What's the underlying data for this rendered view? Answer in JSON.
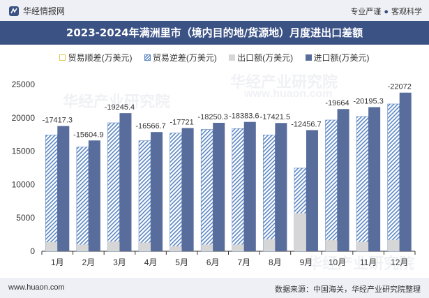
{
  "header": {
    "brand": "华经情报网",
    "tags": [
      "专业严谨",
      "客观科学"
    ]
  },
  "title": "2023-2024年满洲里市（境内目的地/货源地）月度进出口差额",
  "legend": [
    {
      "key": "surplus",
      "label": "贸易顺差(万美元)"
    },
    {
      "key": "deficit",
      "label": "贸易逆差(万美元)"
    },
    {
      "key": "export",
      "label": "出口额(万美元)"
    },
    {
      "key": "import",
      "label": "进口额(万美元)"
    }
  ],
  "watermarks": [
    "华经产业研究院",
    "www.huaon.com"
  ],
  "footer": {
    "url": "www.huaon.com",
    "source": "数据来源：中国海关，华经产业研究院整理"
  },
  "colors": {
    "header_bg": "#3b5285",
    "import": "#586d9c",
    "export": "#d6d6d6",
    "deficit": "#5a86c4",
    "surplus": "#e3c84a"
  },
  "chart_data": {
    "type": "bar",
    "categories": [
      "1月",
      "2月",
      "3月",
      "4月",
      "5月",
      "6月",
      "7月",
      "8月",
      "9月",
      "10月",
      "11月",
      "12月"
    ],
    "series": [
      {
        "name": "贸易顺差(万美元)",
        "values": [
          null,
          null,
          null,
          null,
          null,
          null,
          null,
          null,
          null,
          null,
          null,
          null
        ]
      },
      {
        "name": "贸易逆差(万美元)",
        "values": [
          -17417.3,
          -15604.9,
          -19245.4,
          -16566.7,
          -17721,
          -18250.3,
          -18383.6,
          -17421.5,
          -12456.7,
          -19664,
          -20195.3,
          -22072
        ]
      },
      {
        "name": "出口额(万美元)",
        "values": [
          1350,
          1000,
          1450,
          1300,
          750,
          1000,
          1000,
          1800,
          5700,
          1650,
          1400,
          1700
        ]
      },
      {
        "name": "进口额(万美元)",
        "values": [
          18767.3,
          16604.9,
          20695.4,
          17866.7,
          18471,
          19250.3,
          19383.6,
          19221.5,
          18156.7,
          21314,
          21595.3,
          23772
        ]
      }
    ],
    "data_labels": [
      "-17417.3",
      "-15604.9",
      "-19245.4",
      "-16566.7",
      "-17721",
      "-18250.3",
      "-18383.6",
      "-17421.5",
      "-12456.7",
      "-19664",
      "-20195.3",
      "-22072"
    ],
    "y_ticks": [
      "0",
      "5000",
      "10000",
      "15000",
      "20000",
      "25000"
    ],
    "ylim": [
      0,
      25000
    ],
    "grid": false,
    "legend_position": "top"
  }
}
